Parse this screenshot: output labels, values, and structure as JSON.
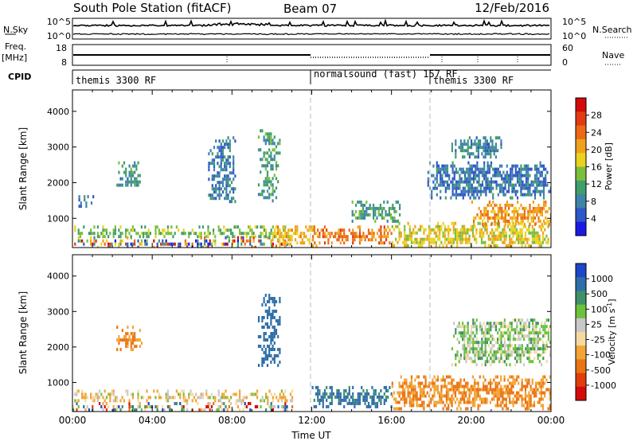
{
  "header": {
    "station": "South Pole Station (fitACF)",
    "beam": "Beam 07",
    "date": "12/Feb/2016"
  },
  "strip_panels": {
    "nsky_label": "N.Sky",
    "nsky_ticks": [
      "10^5",
      "10^0"
    ],
    "nsearch_label": "N.Search",
    "nsearch_ticks": [
      "10^5",
      "10^0"
    ],
    "freq_label": "Freq.",
    "freq_unit": "[MHz]",
    "freq_ticks": [
      "18",
      "8"
    ],
    "nave_label": "Nave",
    "nave_ticks": [
      "60",
      "0"
    ],
    "cpid_label": "CPID",
    "cpid_segments": [
      {
        "label": "themis 3300 RF",
        "start_hour": 0
      },
      {
        "label": "normalsound (fast) 157 RF",
        "start_hour": 12
      },
      {
        "label": "themis 3300 RF",
        "start_hour": 18
      }
    ]
  },
  "chart_data": [
    {
      "type": "heatmap",
      "title": "",
      "quantity": "Power",
      "ylabel": "Slant Range [km]",
      "xlabel": "",
      "x_unit": "hours UT",
      "xlim": [
        0,
        24
      ],
      "ylim": [
        180,
        4600
      ],
      "yticks": [
        1000,
        2000,
        3000,
        4000
      ],
      "colorbar": {
        "label": "Power [dB]",
        "range": [
          0,
          32
        ],
        "ticks": [
          "4",
          "8",
          "12",
          "16",
          "20",
          "24",
          "28"
        ],
        "colors": [
          "#1a1ae6",
          "#2f58c8",
          "#3f83a8",
          "#3f9e6c",
          "#7cbf3c",
          "#ebd21e",
          "#f0a21c",
          "#ec6a16",
          "#e23a12",
          "#d40a0a"
        ]
      },
      "regions": [
        {
          "t": [
            0.0,
            11.0
          ],
          "r": [
            200,
            500
          ],
          "level": "mixed"
        },
        {
          "t": [
            0.0,
            11.0
          ],
          "r": [
            450,
            800
          ],
          "level": 14
        },
        {
          "t": [
            0.3,
            1.2
          ],
          "r": [
            1300,
            1650
          ],
          "level": 6
        },
        {
          "t": [
            2.2,
            3.4
          ],
          "r": [
            1900,
            2600
          ],
          "level": 9
        },
        {
          "t": [
            6.8,
            8.2
          ],
          "r": [
            1500,
            3300
          ],
          "level": 7
        },
        {
          "t": [
            9.3,
            10.4
          ],
          "r": [
            1500,
            3500
          ],
          "level": 10
        },
        {
          "t": [
            10.0,
            12.2
          ],
          "r": [
            200,
            800
          ],
          "level": 20
        },
        {
          "t": [
            12.0,
            16.0
          ],
          "r": [
            300,
            800
          ],
          "level": 24
        },
        {
          "t": [
            14.0,
            16.5
          ],
          "r": [
            900,
            1500
          ],
          "level": 10
        },
        {
          "t": [
            16.0,
            24.0
          ],
          "r": [
            200,
            900
          ],
          "level": 18
        },
        {
          "t": [
            20.0,
            24.0
          ],
          "r": [
            800,
            1500
          ],
          "level": 22
        },
        {
          "t": [
            17.8,
            24.0
          ],
          "r": [
            1600,
            2600
          ],
          "level": 6
        },
        {
          "t": [
            19.0,
            21.5
          ],
          "r": [
            2700,
            3300
          ],
          "level": 8
        }
      ]
    },
    {
      "type": "heatmap",
      "title": "",
      "quantity": "Velocity",
      "ylabel": "Slant Range [km]",
      "xlabel": "Time UT",
      "x_unit": "hours UT",
      "xlim": [
        0,
        24
      ],
      "ylim": [
        180,
        4600
      ],
      "yticks": [
        1000,
        2000,
        3000,
        4000
      ],
      "xticks": [
        "00:00",
        "04:00",
        "08:00",
        "12:00",
        "16:00",
        "20:00",
        "00:00"
      ],
      "colorbar": {
        "label": "Velocity [m s^-1]",
        "ticks": [
          "1000",
          "500",
          "100",
          "25",
          "-25",
          "-100",
          "-500",
          "-1000"
        ],
        "colors": [
          "#1e46c8",
          "#2f6ea8",
          "#3f9068",
          "#6cc23c",
          "#c8c8c8",
          "#f5d9a0",
          "#f2a436",
          "#ea7414",
          "#e13c0c",
          "#d40a0a"
        ]
      },
      "regions": [
        {
          "t": [
            0.0,
            11.0
          ],
          "r": [
            200,
            450
          ],
          "level": "mixed"
        },
        {
          "t": [
            0.0,
            11.0
          ],
          "r": [
            450,
            800
          ],
          "level": -100
        },
        {
          "t": [
            2.2,
            3.5
          ],
          "r": [
            1900,
            2600
          ],
          "level": -300
        },
        {
          "t": [
            9.3,
            10.4
          ],
          "r": [
            1500,
            3500
          ],
          "level": 200
        },
        {
          "t": [
            12.0,
            16.0
          ],
          "r": [
            300,
            900
          ],
          "level": 150
        },
        {
          "t": [
            16.0,
            24.0
          ],
          "r": [
            300,
            1200
          ],
          "level": -300
        },
        {
          "t": [
            19.0,
            24.0
          ],
          "r": [
            1500,
            2800
          ],
          "level": 0
        }
      ]
    }
  ]
}
